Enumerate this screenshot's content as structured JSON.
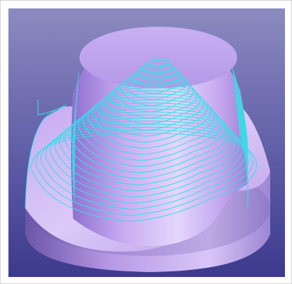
{
  "viewport": {
    "background_top": "#8c8bbf",
    "background_bottom": "#3d3a8e",
    "model_color": "#c8a8f0",
    "toolpath_color": "#35e0e8"
  },
  "model": {
    "toolpath_ring_count": 26
  }
}
